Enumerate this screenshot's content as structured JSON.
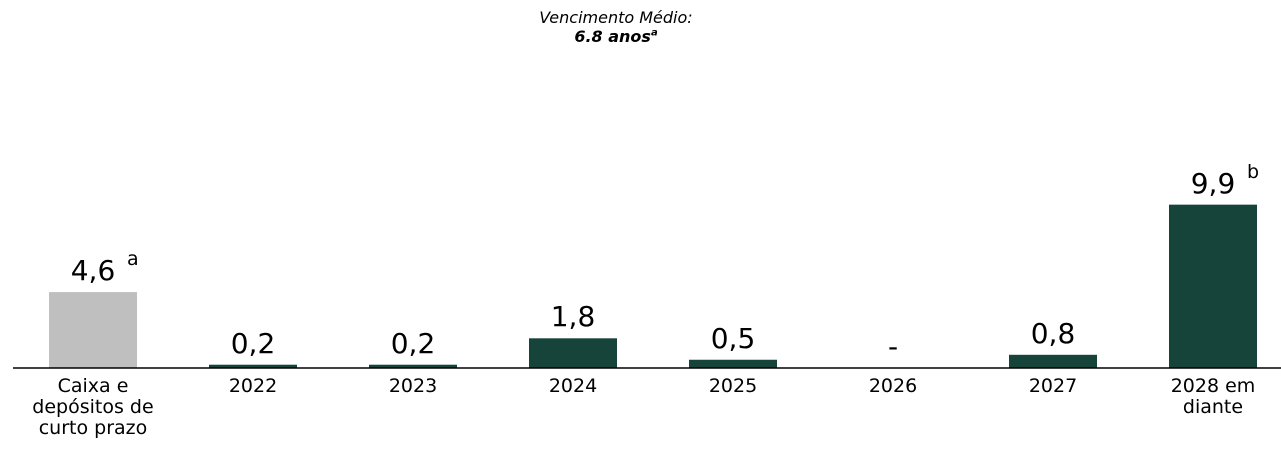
{
  "chart_data": {
    "type": "bar",
    "title": "Vencimento Médio:",
    "subtitle": "6.8 anos",
    "subtitle_note": "a",
    "categories": [
      "Caixa e depósitos de curto prazo",
      "2022",
      "2023",
      "2024",
      "2025",
      "2026",
      "2027",
      "2028 em diante"
    ],
    "values": [
      4.6,
      0.2,
      0.2,
      1.8,
      0.5,
      0,
      0.8,
      9.9
    ],
    "value_labels": [
      "4,6",
      "0,2",
      "0,2",
      "1,8",
      "0,5",
      "-",
      "0,8",
      "9,9"
    ],
    "value_notes": [
      "a",
      null,
      null,
      null,
      null,
      null,
      null,
      "b"
    ],
    "colors": [
      "#bfbfbf",
      "#17443a",
      "#17443a",
      "#17443a",
      "#17443a",
      "#17443a",
      "#17443a",
      "#17443a"
    ],
    "ylim": [
      0,
      10
    ],
    "grid": false
  }
}
